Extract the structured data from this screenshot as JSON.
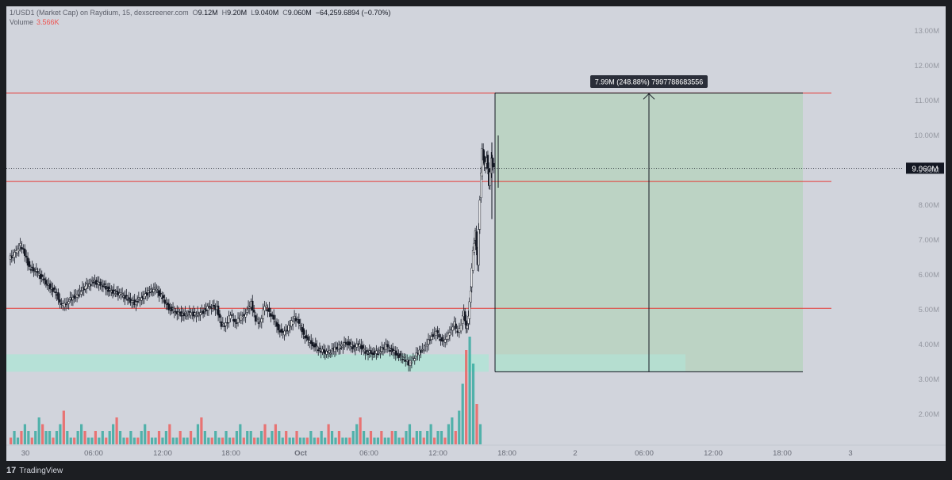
{
  "header": {
    "symbol_line": "1/USD1 (Market Cap) on Raydium, 15, dexscreener.com",
    "o_label": "O",
    "o_value": "9.12M",
    "h_label": "H",
    "h_value": "9.20M",
    "l_label": "L",
    "l_value": "9.040M",
    "c_label": "C",
    "c_value": "9.060M",
    "change": "−64,259.6894 (−0.70%)",
    "volume_label": "Volume",
    "volume_value": "3.566K"
  },
  "footer": {
    "brand": "TradingView",
    "brand_mark": "17"
  },
  "colors": {
    "background": "#d1d4dc",
    "up": "#26a69a",
    "down": "#ef5350",
    "candle": "#131722",
    "level_line": "#e53935",
    "target_zone": "#b9d3c1",
    "highlight_zone": "#b2e3d6"
  },
  "chart_data": {
    "type": "candlestick",
    "y_axis": {
      "min": 1.5,
      "max": 13.0,
      "unit": "M",
      "ticks": [
        "2.00M",
        "3.00M",
        "4.00M",
        "5.00M",
        "6.00M",
        "7.00M",
        "8.00M",
        "9.00M",
        "10.00M",
        "11.00M",
        "12.00M",
        "13.00M"
      ]
    },
    "x_axis": {
      "ticks": [
        "30",
        "06:00",
        "12:00",
        "18:00",
        "Oct",
        "06:00",
        "12:00",
        "18:00",
        "2",
        "06:00",
        "12:00",
        "18:00",
        "3"
      ]
    },
    "last_price_label": "9.060M",
    "last_price": 9.06,
    "horizontal_levels": [
      11.22,
      8.68,
      5.04
    ],
    "measure": {
      "label": "7.99M (248.88%) 7997788683556",
      "low": 3.22,
      "high": 11.22
    },
    "highlight_band": {
      "low": 3.22,
      "high": 3.72
    },
    "price_path": [
      [
        0,
        6.45
      ],
      [
        5,
        6.6
      ],
      [
        10,
        6.85
      ],
      [
        14,
        6.6
      ],
      [
        18,
        6.2
      ],
      [
        24,
        6.1
      ],
      [
        30,
        5.85
      ],
      [
        36,
        5.65
      ],
      [
        42,
        5.45
      ],
      [
        46,
        5.1
      ],
      [
        50,
        5.2
      ],
      [
        56,
        5.35
      ],
      [
        62,
        5.5
      ],
      [
        68,
        5.7
      ],
      [
        74,
        5.8
      ],
      [
        80,
        5.75
      ],
      [
        86,
        5.6
      ],
      [
        92,
        5.5
      ],
      [
        98,
        5.45
      ],
      [
        104,
        5.3
      ],
      [
        110,
        5.2
      ],
      [
        116,
        5.35
      ],
      [
        122,
        5.5
      ],
      [
        128,
        5.6
      ],
      [
        134,
        5.35
      ],
      [
        140,
        5.05
      ],
      [
        146,
        4.95
      ],
      [
        152,
        4.85
      ],
      [
        158,
        4.9
      ],
      [
        164,
        4.85
      ],
      [
        170,
        4.95
      ],
      [
        176,
        5.1
      ],
      [
        182,
        5.05
      ],
      [
        186,
        4.55
      ],
      [
        190,
        4.6
      ],
      [
        194,
        4.85
      ],
      [
        198,
        4.65
      ],
      [
        202,
        4.75
      ],
      [
        206,
        4.85
      ],
      [
        212,
        5.2
      ],
      [
        216,
        4.7
      ],
      [
        220,
        4.65
      ],
      [
        224,
        5.1
      ],
      [
        228,
        4.95
      ],
      [
        232,
        4.7
      ],
      [
        236,
        4.45
      ],
      [
        240,
        4.3
      ],
      [
        246,
        4.55
      ],
      [
        250,
        4.8
      ],
      [
        254,
        4.6
      ],
      [
        258,
        4.3
      ],
      [
        262,
        4.1
      ],
      [
        266,
        4.0
      ],
      [
        272,
        3.85
      ],
      [
        278,
        3.75
      ],
      [
        284,
        3.85
      ],
      [
        290,
        3.95
      ],
      [
        296,
        4.05
      ],
      [
        302,
        3.9
      ],
      [
        306,
        4.0
      ],
      [
        312,
        3.8
      ],
      [
        318,
        3.75
      ],
      [
        324,
        3.8
      ],
      [
        330,
        3.95
      ],
      [
        336,
        3.8
      ],
      [
        340,
        3.7
      ],
      [
        346,
        3.6
      ],
      [
        350,
        3.45
      ],
      [
        354,
        3.6
      ],
      [
        358,
        3.75
      ],
      [
        362,
        3.85
      ],
      [
        366,
        4.0
      ],
      [
        370,
        4.25
      ],
      [
        374,
        4.35
      ],
      [
        378,
        4.15
      ],
      [
        382,
        4.1
      ],
      [
        386,
        4.4
      ],
      [
        390,
        4.6
      ],
      [
        393,
        4.3
      ],
      [
        396,
        4.55
      ],
      [
        398,
        5.0
      ],
      [
        400,
        4.4
      ],
      [
        402,
        4.8
      ],
      [
        404,
        5.6
      ],
      [
        406,
        6.7
      ],
      [
        408,
        7.2
      ],
      [
        410,
        6.3
      ],
      [
        412,
        8.2
      ],
      [
        414,
        9.6
      ],
      [
        416,
        9.1
      ],
      [
        418,
        9.4
      ],
      [
        420,
        8.6
      ],
      [
        422,
        9.3
      ],
      [
        424,
        9.06
      ]
    ],
    "volume": [
      1,
      2,
      1,
      2,
      3,
      2,
      1,
      2,
      4,
      3,
      2,
      2,
      1,
      2,
      3,
      5,
      2,
      1,
      1,
      2,
      3,
      2,
      1,
      1,
      2,
      1,
      2,
      1,
      2,
      3,
      4,
      2,
      1,
      1,
      2,
      1,
      1,
      2,
      3,
      2,
      1,
      1,
      2,
      1,
      2,
      3,
      1,
      1,
      2,
      1,
      1,
      2,
      1,
      3,
      4,
      2,
      1,
      1,
      2,
      1,
      1,
      2,
      1,
      1,
      2,
      3,
      1,
      2,
      2,
      1,
      1,
      2,
      3,
      1,
      2,
      3,
      2,
      1,
      2,
      1,
      1,
      2,
      1,
      1,
      1,
      2,
      1,
      1,
      2,
      1,
      3,
      2,
      1,
      2,
      1,
      1,
      1,
      2,
      3,
      4,
      2,
      1,
      2,
      1,
      1,
      2,
      1,
      1,
      2,
      2,
      1,
      1,
      2,
      3,
      1,
      2,
      2,
      1,
      2,
      3,
      1,
      2,
      2,
      1,
      3,
      4,
      2,
      5,
      9,
      14,
      16,
      12,
      6,
      3
    ]
  }
}
